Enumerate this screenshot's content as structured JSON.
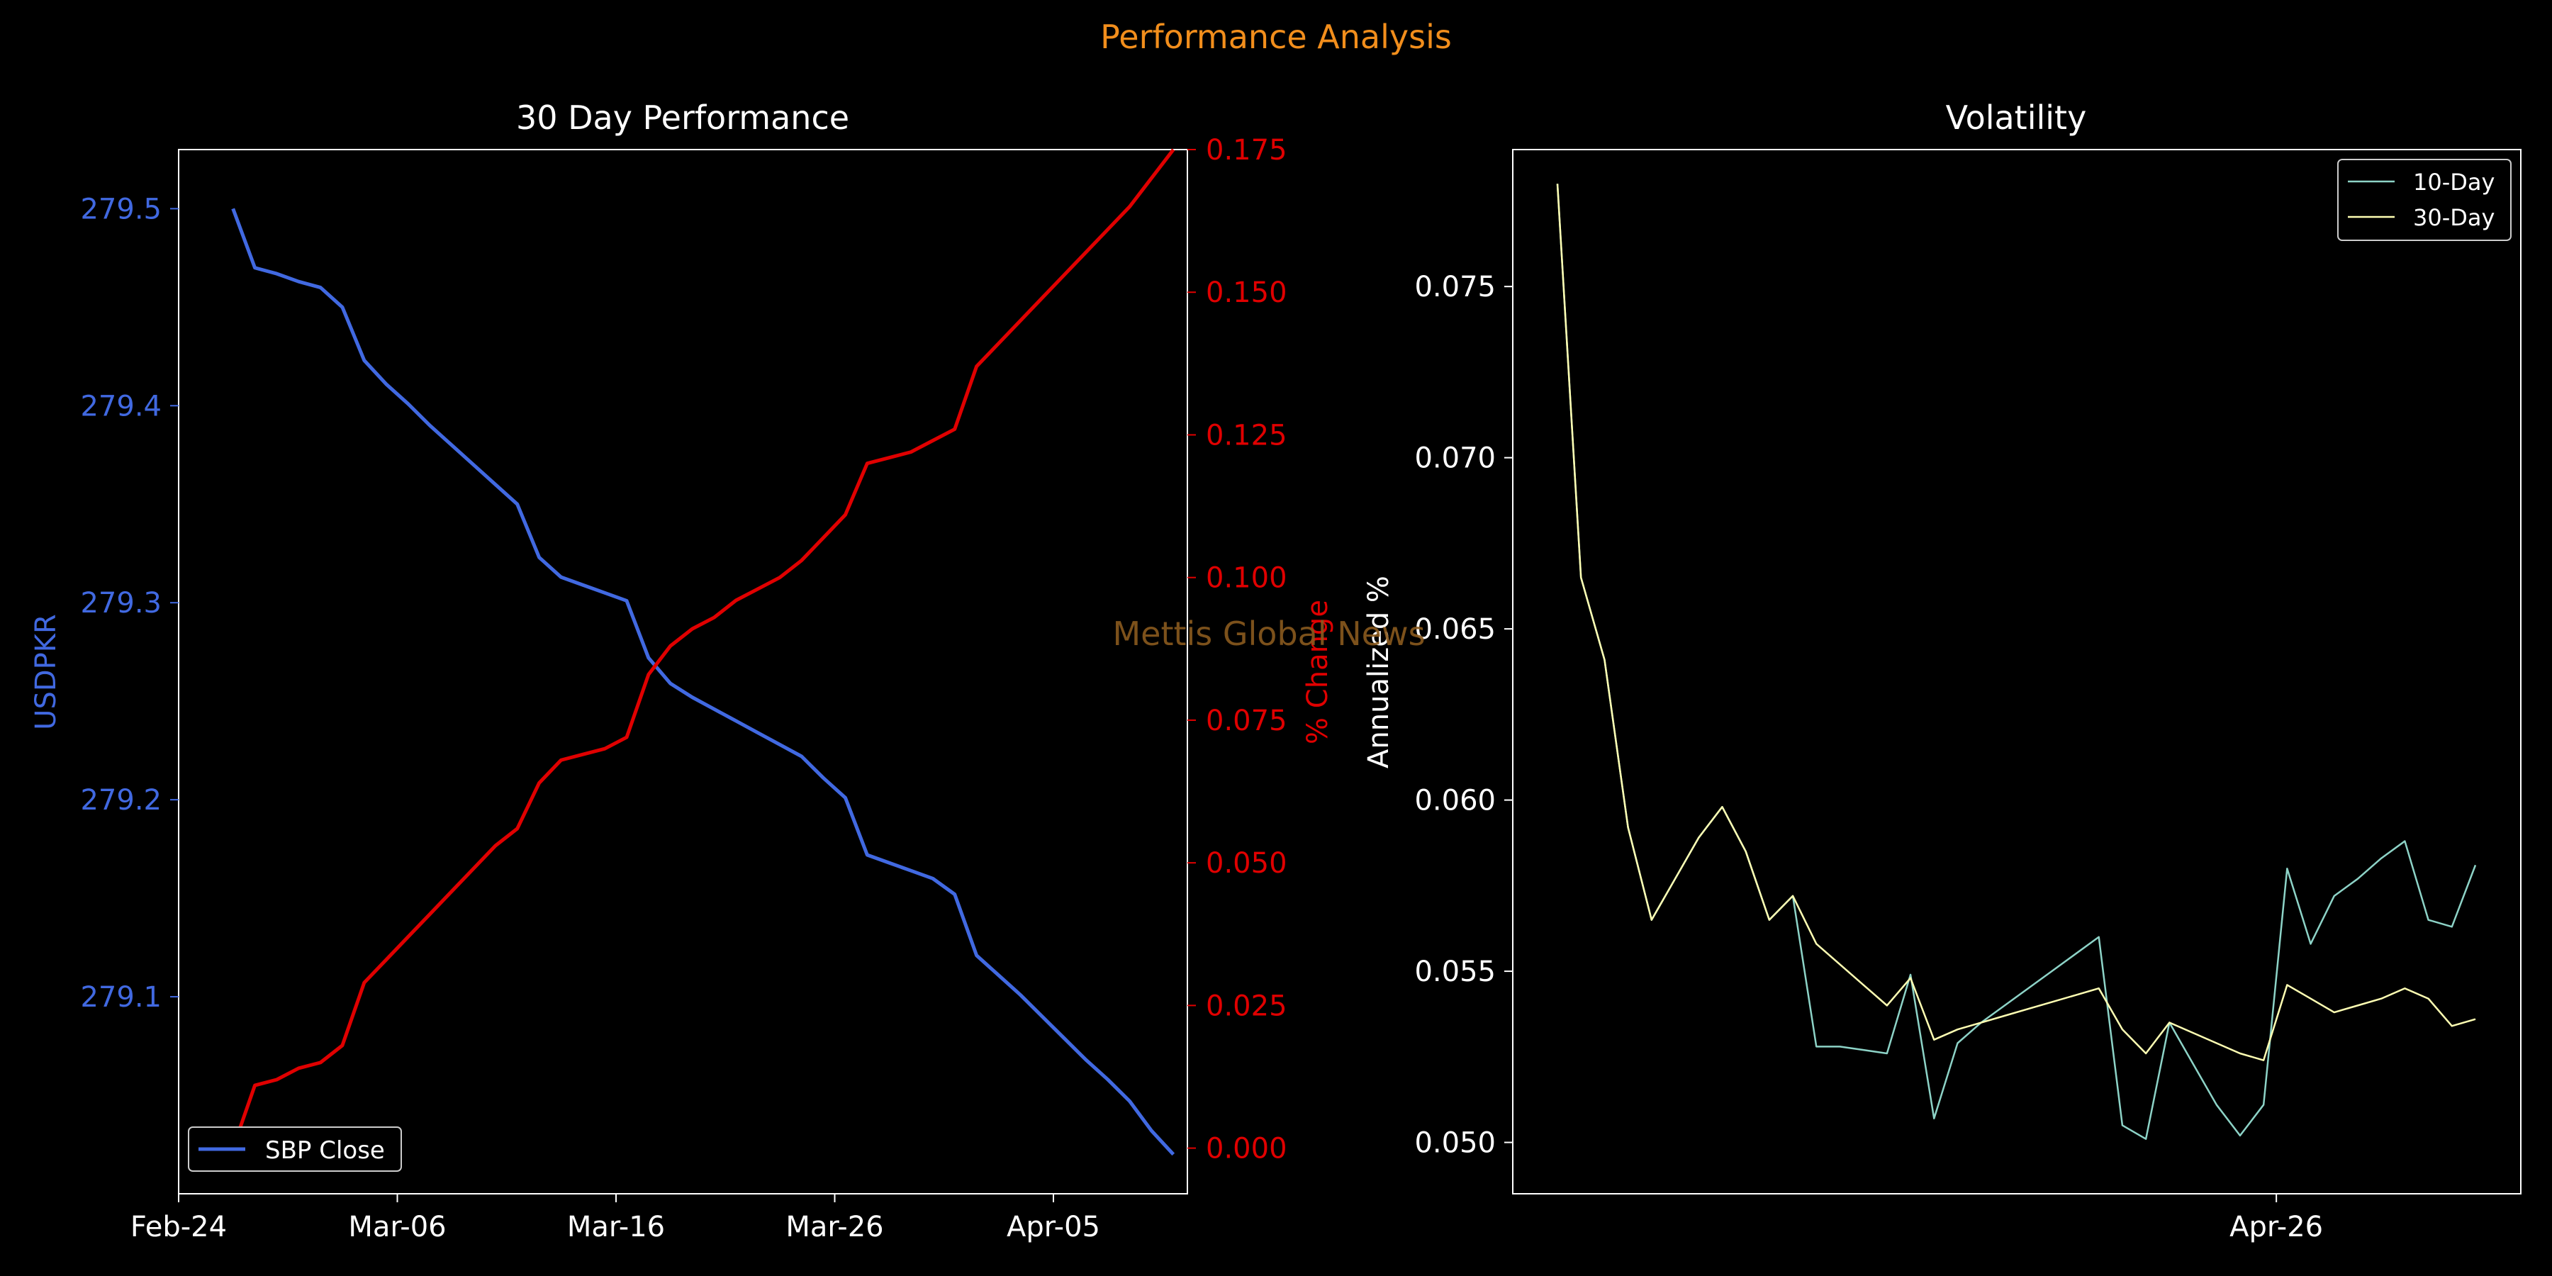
{
  "suptitle": "Performance Analysis",
  "watermark": "Mettis Global News",
  "colors": {
    "background": "#000000",
    "suptitle": "#f28e1c",
    "watermark": "#8a5a1e",
    "price": "#4169e1",
    "change": "#e00000",
    "vol10": "#8dd3c7",
    "vol30": "#ffffb3",
    "text": "#ffffff"
  },
  "chart_data": [
    {
      "type": "line",
      "title": "30 Day Performance",
      "ylabel_left": "USDPKR",
      "ylabel_right": "% Change",
      "x_ticks": [
        "Feb-24",
        "Mar-06",
        "Mar-16",
        "Mar-26",
        "Apr-05"
      ],
      "left_ylim": [
        279.0,
        279.53
      ],
      "left_yticks": [
        "279.1",
        "279.2",
        "279.3",
        "279.4",
        "279.5"
      ],
      "right_ylim": [
        -0.008,
        0.175
      ],
      "right_yticks": [
        "0.000",
        "0.025",
        "0.050",
        "0.075",
        "0.100",
        "0.125",
        "0.150",
        "0.175"
      ],
      "legend": {
        "placement": "lower-left",
        "entries": [
          "SBP Close"
        ]
      },
      "x": [
        "Feb-26",
        "Feb-27",
        "Feb-28",
        "Feb-29",
        "Mar-01",
        "Mar-02",
        "Mar-03",
        "Mar-04",
        "Mar-05",
        "Mar-06",
        "Mar-07",
        "Mar-08",
        "Mar-09",
        "Mar-10",
        "Mar-11",
        "Mar-12",
        "Mar-13",
        "Mar-14",
        "Mar-15",
        "Mar-16",
        "Mar-17",
        "Mar-18",
        "Mar-19",
        "Mar-20",
        "Mar-21",
        "Mar-22",
        "Mar-23",
        "Mar-24",
        "Mar-25",
        "Mar-26",
        "Mar-27",
        "Mar-28",
        "Mar-29",
        "Mar-30",
        "Mar-31",
        "Apr-01",
        "Apr-02",
        "Apr-03",
        "Apr-04",
        "Apr-05",
        "Apr-06",
        "Apr-07",
        "Apr-08",
        "Apr-09"
      ],
      "series": [
        {
          "name": "SBP Close",
          "axis": "left",
          "values": [
            279.5,
            279.47,
            279.467,
            279.463,
            279.46,
            279.45,
            279.423,
            279.411,
            279.401,
            279.39,
            279.38,
            279.37,
            279.36,
            279.35,
            279.323,
            279.313,
            279.309,
            279.305,
            279.301,
            279.272,
            279.259,
            279.252,
            279.246,
            279.24,
            279.234,
            279.228,
            279.222,
            279.211,
            279.201,
            279.172,
            279.168,
            279.164,
            279.16,
            279.152,
            279.121,
            279.111,
            279.101,
            279.09,
            279.079,
            279.068,
            279.058,
            279.047,
            279.032,
            279.02
          ]
        },
        {
          "name": "% Change",
          "axis": "right",
          "values": [
            0.0,
            0.011,
            0.012,
            0.014,
            0.015,
            0.018,
            0.029,
            0.033,
            0.037,
            0.041,
            0.045,
            0.049,
            0.053,
            0.056,
            0.064,
            0.068,
            0.069,
            0.07,
            0.072,
            0.083,
            0.088,
            0.091,
            0.093,
            0.096,
            0.098,
            0.1,
            0.103,
            0.107,
            0.111,
            0.12,
            0.121,
            0.122,
            0.124,
            0.126,
            0.137,
            0.141,
            0.145,
            0.149,
            0.153,
            0.157,
            0.161,
            0.165,
            0.17,
            0.175
          ]
        }
      ]
    },
    {
      "type": "line",
      "title": "Volatility",
      "ylabel": "Annualized %",
      "x_ticks": [
        "Apr-26"
      ],
      "x_tick_index": 30,
      "ylim": [
        0.0485,
        0.079
      ],
      "yticks": [
        "0.050",
        "0.055",
        "0.060",
        "0.065",
        "0.070",
        "0.075"
      ],
      "legend": {
        "placement": "top-right",
        "entries": [
          "10-Day",
          "30-Day"
        ]
      },
      "series": [
        {
          "name": "10-Day",
          "values": [
            0.078,
            0.0665,
            0.0641,
            0.0592,
            0.0565,
            0.0577,
            0.0589,
            0.0598,
            0.0585,
            0.0565,
            0.0572,
            0.0528,
            0.0528,
            0.0527,
            0.0526,
            0.0549,
            0.0507,
            0.0529,
            0.0535,
            0.054,
            0.0545,
            0.055,
            0.0555,
            0.056,
            0.0505,
            0.0501,
            0.0535,
            0.0523,
            0.0511,
            0.0502,
            0.0511,
            0.058,
            0.0558,
            0.0572,
            0.0577,
            0.0583,
            0.0588,
            0.0565,
            0.0563,
            0.0581
          ]
        },
        {
          "name": "30-Day",
          "values": [
            0.078,
            0.0665,
            0.0641,
            0.0592,
            0.0565,
            0.0577,
            0.0589,
            0.0598,
            0.0585,
            0.0565,
            0.0572,
            0.0558,
            0.0552,
            0.0546,
            0.054,
            0.0548,
            0.053,
            0.0533,
            0.0535,
            0.0537,
            0.0539,
            0.0541,
            0.0543,
            0.0545,
            0.0533,
            0.0526,
            0.0535,
            0.0532,
            0.0529,
            0.0526,
            0.0524,
            0.0546,
            0.0542,
            0.0538,
            0.054,
            0.0542,
            0.0545,
            0.0542,
            0.0534,
            0.0536
          ]
        }
      ]
    }
  ]
}
